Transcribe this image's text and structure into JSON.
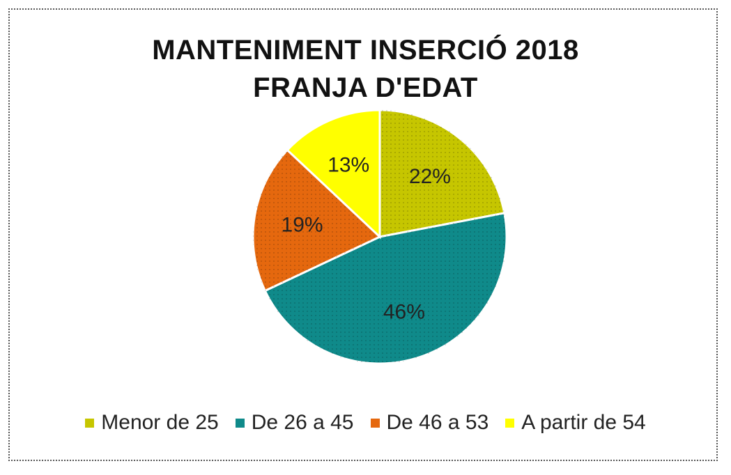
{
  "chart_data": {
    "type": "pie",
    "title": "MANTENIMENT INSERCIÓ 2018",
    "subtitle": "FRANJA D'EDAT",
    "categories": [
      "Menor de 25",
      "De 26 a 45",
      "De 46 a 53",
      "A partir de 54"
    ],
    "values": [
      22,
      46,
      19,
      13
    ],
    "labels": [
      "22%",
      "46%",
      "19%",
      "13%"
    ],
    "colors": [
      "#c6c600",
      "#0f8a8a",
      "#e5680e",
      "#ffff00"
    ],
    "legend_position": "bottom"
  }
}
